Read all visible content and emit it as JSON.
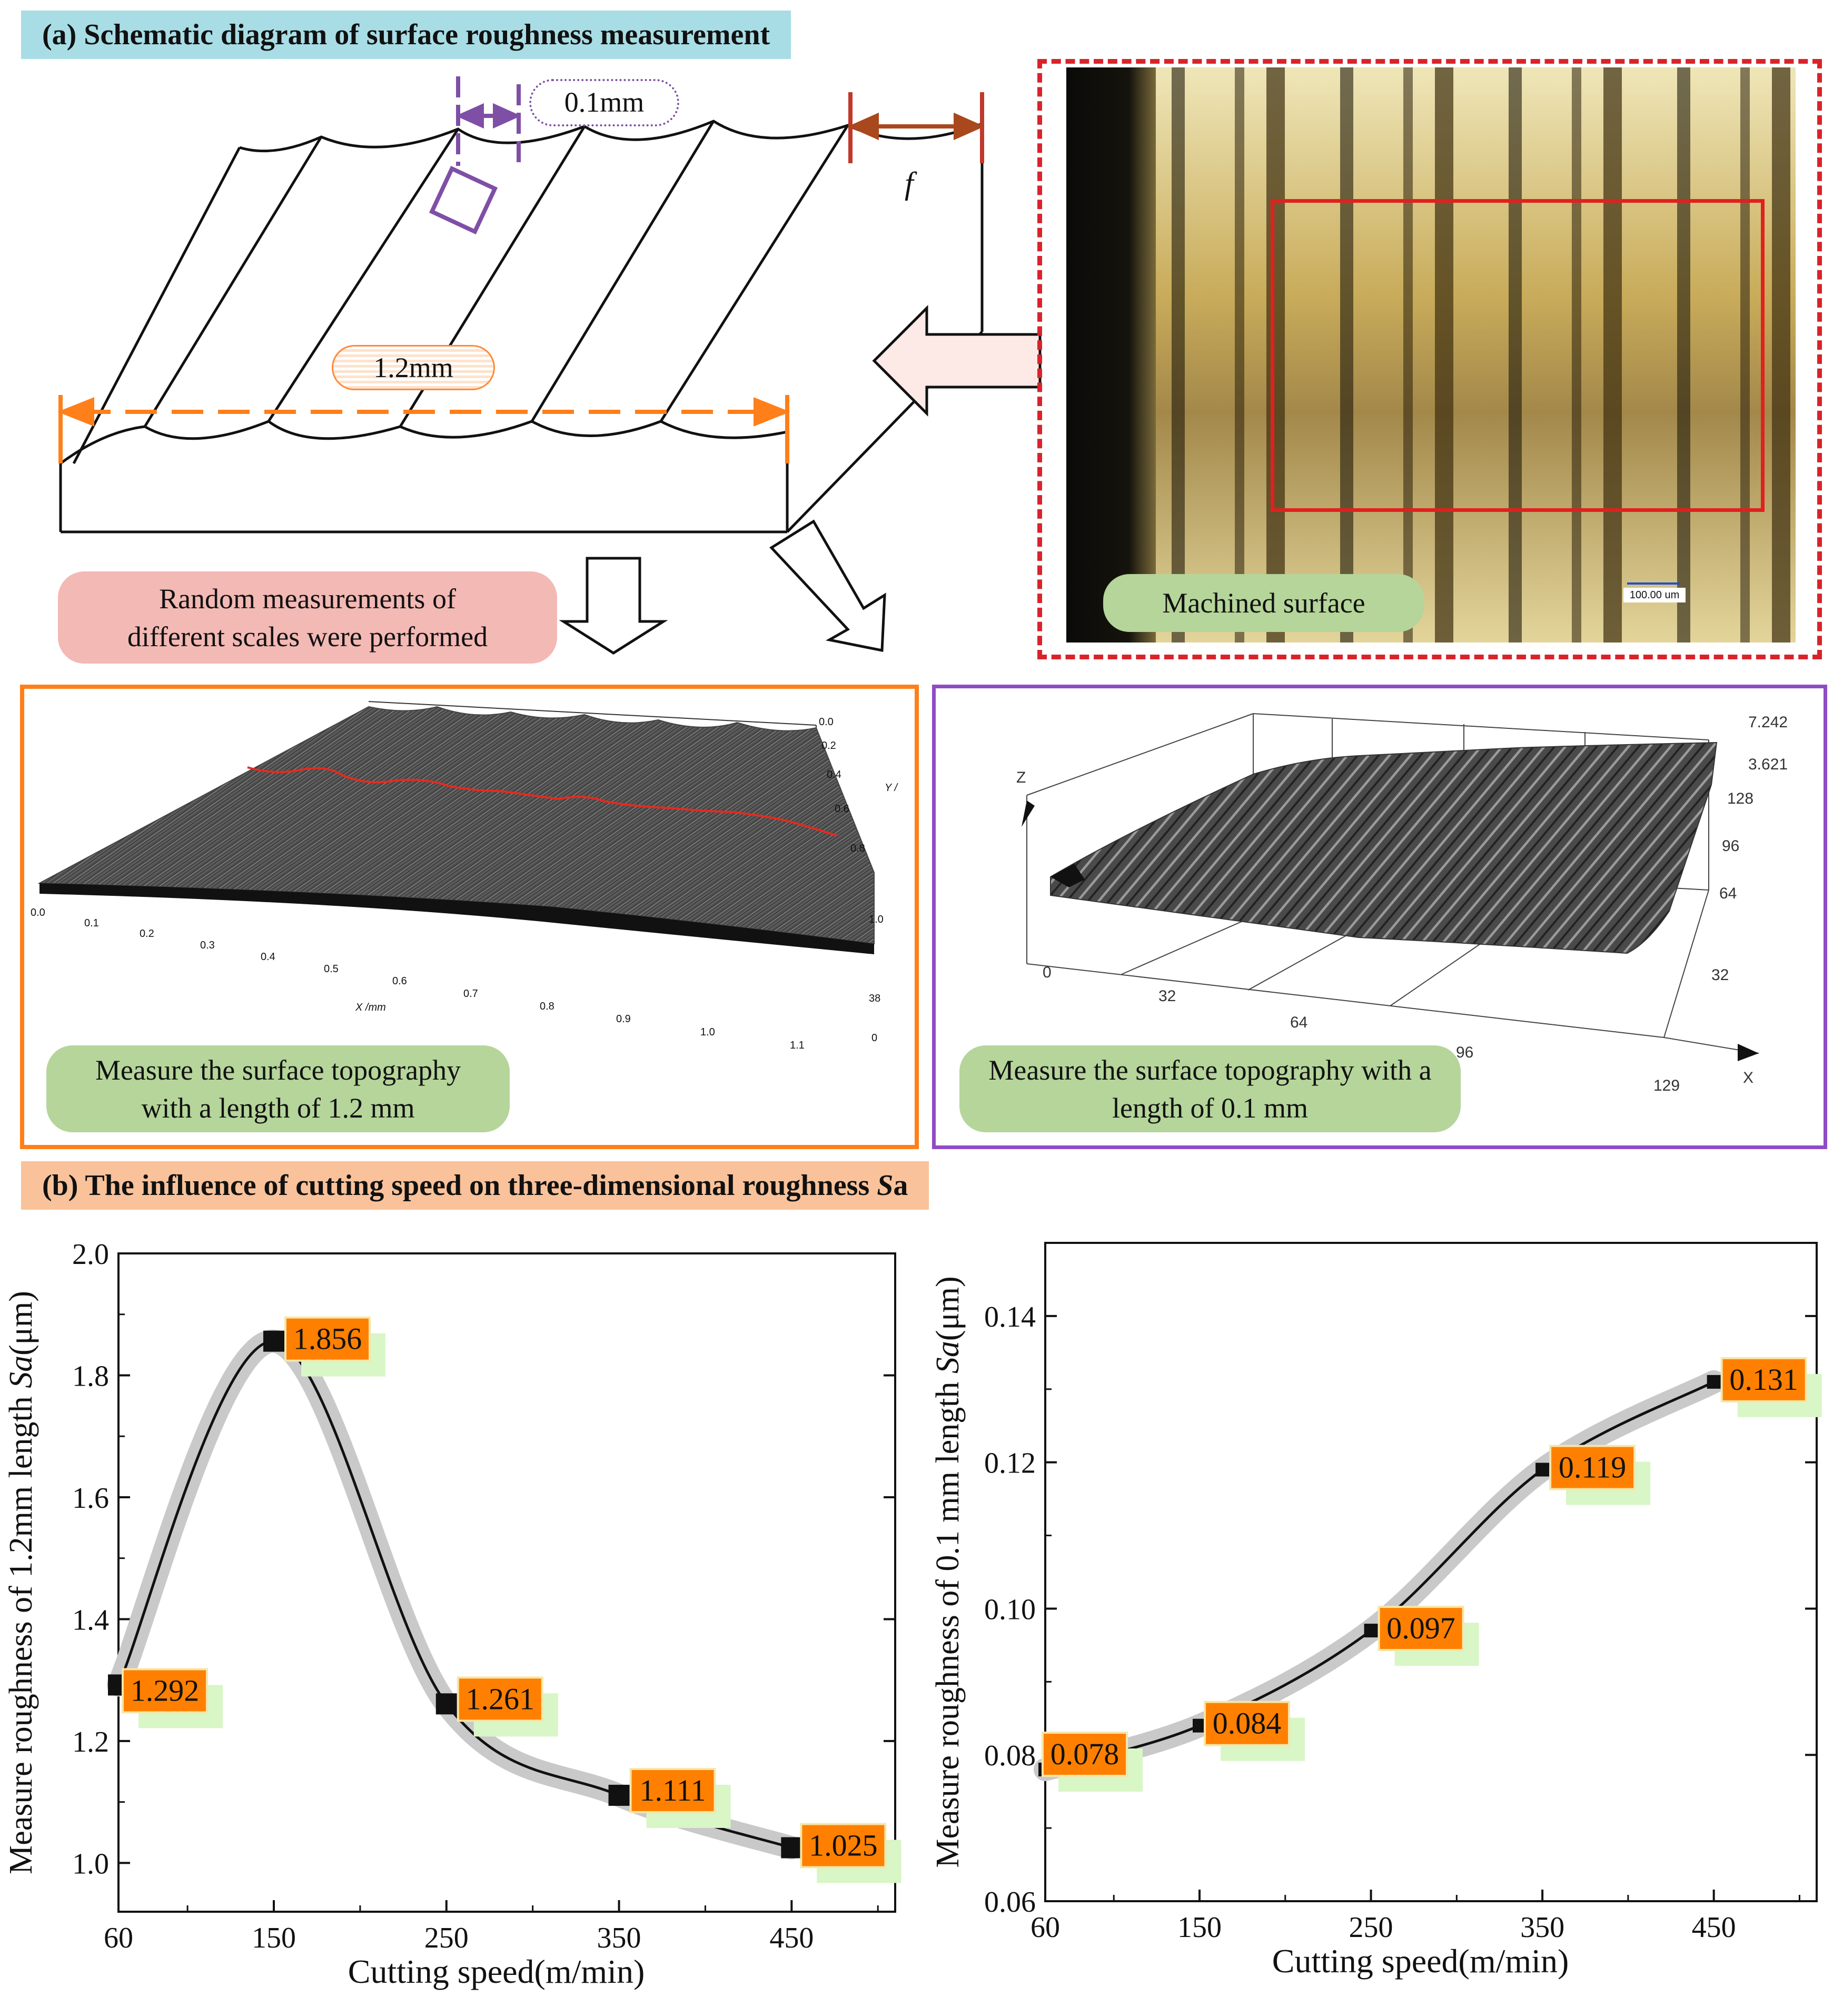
{
  "panel_a": {
    "label": "(a)  Schematic diagram of surface roughness measurement",
    "dim_small": "0.1mm",
    "dim_large": "1.2mm",
    "feed_symbol": "f",
    "random_note": "Random measurements of different scales were performed",
    "photo_label": "Machined surface",
    "photo_scale": "100.00 um",
    "topo_large": {
      "caption": "Measure the surface topography with a length of 1.2 mm",
      "x_axis_label": "X /mm",
      "y_axis_label": "Y /",
      "x_ticks": [
        "0.0",
        "0.1",
        "0.2",
        "0.3",
        "0.4",
        "0.5",
        "0.6",
        "0.7",
        "0.8",
        "0.9",
        "1.0",
        "1.1"
      ],
      "y_ticks": [
        "0.0",
        "0.2",
        "0.4",
        "0.6",
        "0.8",
        "1.0"
      ],
      "z_ticks": [
        "38",
        "0"
      ]
    },
    "topo_small": {
      "caption": "Measure the surface topography with a length of 0.1 mm",
      "z_label": "Z",
      "x_label": "X",
      "x_ticks": [
        "0",
        "32",
        "64",
        "96",
        "129"
      ],
      "y_ticks": [
        "32",
        "64",
        "96",
        "128"
      ],
      "z_ticks": [
        "7.242",
        "3.621"
      ]
    }
  },
  "panel_b": {
    "label_prefix": "(b) The influence of cutting speed on three-dimensional roughness ",
    "label_symbol": "S",
    "label_suffix": "a"
  },
  "colors": {
    "orange_label": "#ff8000",
    "green_pill": "#b5d59a",
    "pink_pill": "#f3b9b5",
    "cyan_label": "#a8dde5",
    "peach_label": "#f9c29a",
    "red_dash": "#d9232a",
    "purple": "#7f4fa6"
  },
  "chart_data": [
    {
      "type": "line",
      "title": "",
      "xlabel": "Cutting speed(m/min)",
      "ylabel_prefix": "Measure roughness of 1.2mm length ",
      "ylabel_symbol": "Sa",
      "ylabel_unit": "(μm)",
      "x_tick_labels": [
        "60",
        "150",
        "250",
        "350",
        "450"
      ],
      "y_tick_labels": [
        "1.0",
        "1.2",
        "1.4",
        "1.6",
        "1.8",
        "2.0"
      ],
      "xlim": [
        60,
        510
      ],
      "ylim": [
        0.92,
        2.0
      ],
      "x": [
        60,
        150,
        250,
        350,
        450
      ],
      "y": [
        1.292,
        1.856,
        1.261,
        1.111,
        1.025
      ],
      "labels": [
        "1.292",
        "1.856",
        "1.261",
        "1.111",
        "1.025"
      ]
    },
    {
      "type": "line",
      "title": "",
      "xlabel": "Cutting speed(m/min)",
      "ylabel_prefix": "Measure roughness of 0.1 mm length ",
      "ylabel_symbol": "Sa",
      "ylabel_unit": "(μm)",
      "x_tick_labels": [
        "60",
        "150",
        "250",
        "350",
        "450"
      ],
      "y_tick_labels": [
        "0.06",
        "0.08",
        "0.10",
        "0.12",
        "0.14"
      ],
      "xlim": [
        60,
        510
      ],
      "ylim": [
        0.06,
        0.15
      ],
      "x": [
        60,
        150,
        250,
        350,
        450
      ],
      "y": [
        0.078,
        0.084,
        0.097,
        0.119,
        0.131
      ],
      "labels": [
        "0.078",
        "0.084",
        "0.097",
        "0.119",
        "0.131"
      ]
    }
  ]
}
